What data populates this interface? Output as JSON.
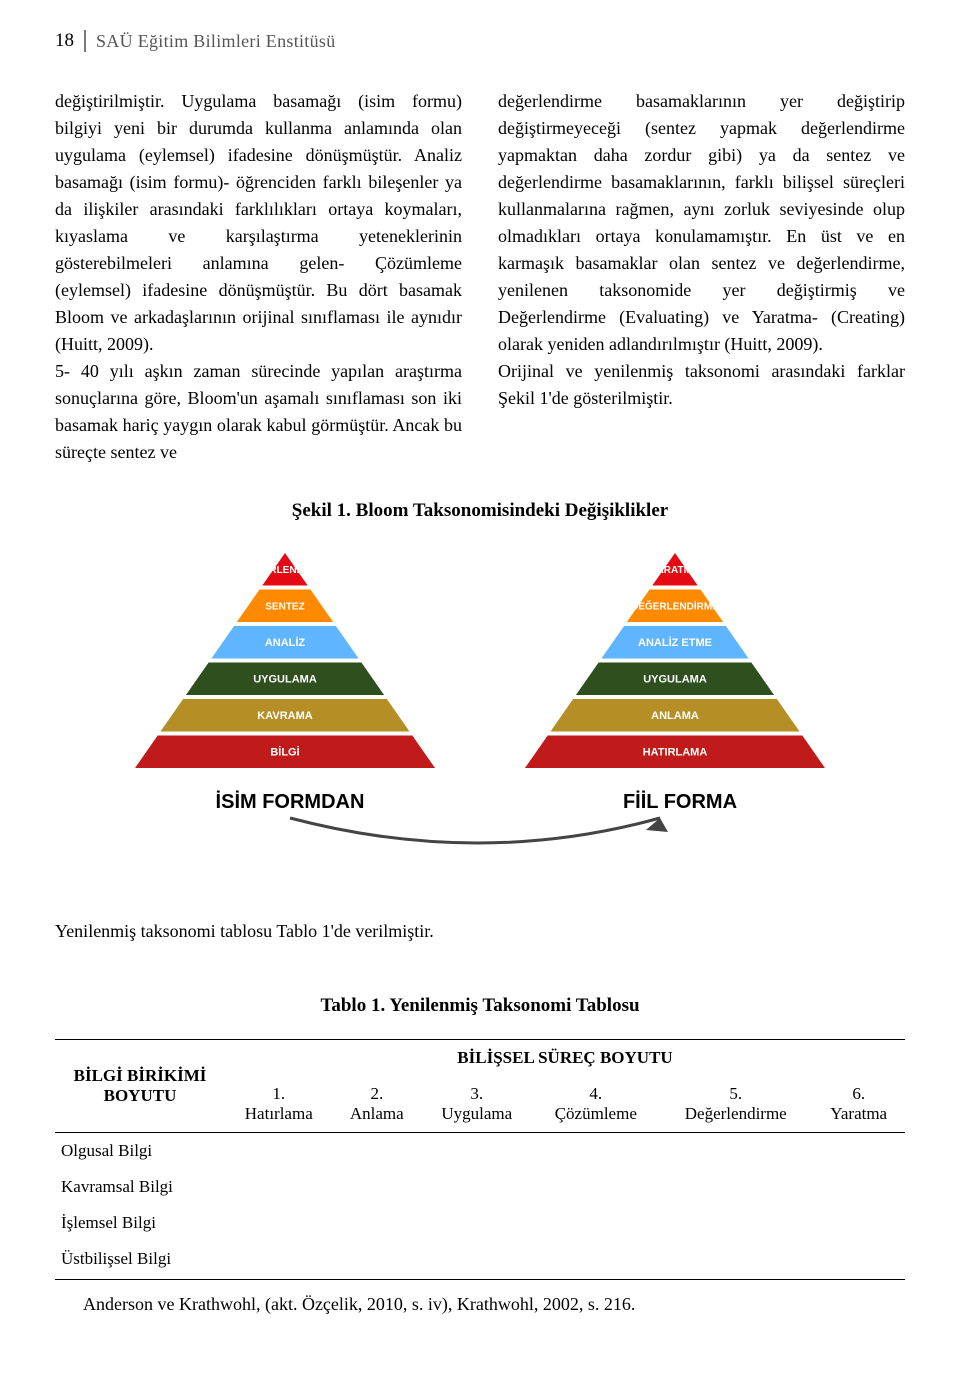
{
  "header": {
    "page_number": "18",
    "institute": "SAÜ Eğitim Bilimleri Enstitüsü"
  },
  "body": {
    "left": "değiştirilmiştir. Uygulama basamağı (isim formu) bilgiyi yeni bir durumda kullanma anlamında olan uygulama (eylemsel) ifadesine dönüşmüştür. Analiz basamağı (isim formu)- öğrenciden farklı bileşenler ya da ilişkiler arasındaki farklılıkları ortaya koymaları, kıyaslama ve karşılaştırma yeteneklerinin gösterebilmeleri anlamına gelen- Çözümleme (eylemsel) ifadesine dönüşmüştür. Bu dört basamak Bloom ve arkadaşlarının orijinal sınıflaması ile aynıdır (Huitt, 2009).\n5- 40 yılı aşkın zaman sürecinde yapılan araştırma sonuçlarına göre, Bloom'un aşamalı sınıflaması son iki basamak hariç yaygın olarak kabul görmüştür. Ancak bu süreçte sentez ve",
    "right": "değerlendirme basamaklarının yer değiştirip değiştirmeyeceği (sentez yapmak değerlendirme yapmaktan daha zordur gibi) ya da sentez ve değerlendirme basamaklarının, farklı bilişsel süreçleri kullanmalarına rağmen, aynı zorluk seviyesinde olup olmadıkları ortaya konulamamıştır. En üst ve en karmaşık basamaklar olan sentez ve değerlendirme, yenilenen taksonomide yer değiştirmiş ve Değerlendirme (Evaluating) ve Yaratma- (Creating) olarak yeniden adlandırılmıştır (Huitt, 2009).\nOrijinal ve yenilenmiş taksonomi arasındaki farklar Şekil 1'de gösterilmiştir."
  },
  "figure": {
    "title": "Şekil 1. Bloom Taksonomisindeki Değişiklikler",
    "left_form": "İSİM FORMDAN",
    "right_form": "FİİL FORMA",
    "arrow_color": "#444444",
    "left_pyramid": {
      "levels": [
        {
          "label": "DEĞERLENDİRME",
          "color": "#e50914"
        },
        {
          "label": "SENTEZ",
          "color": "#ff8a00"
        },
        {
          "label": "ANALİZ",
          "color": "#5fb5ff"
        },
        {
          "label": "UYGULAMA",
          "color": "#2f4f1f"
        },
        {
          "label": "KAVRAMA",
          "color": "#b58f26"
        },
        {
          "label": "BİLGİ",
          "color": "#c01a1a"
        }
      ]
    },
    "right_pyramid": {
      "levels": [
        {
          "label": "YARATMA",
          "color": "#e50914"
        },
        {
          "label": "DEĞERLENDİRME",
          "color": "#ff8a00"
        },
        {
          "label": "ANALİZ ETME",
          "color": "#5fb5ff"
        },
        {
          "label": "UYGULAMA",
          "color": "#2f4f1f"
        },
        {
          "label": "ANLAMA",
          "color": "#b58f26"
        },
        {
          "label": "HATIRLAMA",
          "color": "#c01a1a"
        }
      ]
    }
  },
  "section_para": "Yenilenmiş taksonomi tablosu Tablo 1'de verilmiştir.",
  "table": {
    "title": "Tablo 1. Yenilenmiş Taksonomi Tablosu",
    "left_head_1": "BİLGİ BİRİKİMİ",
    "left_head_2": "BOYUTU",
    "super_head": "BİLİŞSEL SÜREÇ BOYUTU",
    "cols": [
      {
        "n": "1.",
        "label": "Hatırlama"
      },
      {
        "n": "2.",
        "label": "Anlama"
      },
      {
        "n": "3.",
        "label": "Uygulama"
      },
      {
        "n": "4.",
        "label": "Çözümleme"
      },
      {
        "n": "5.",
        "label": "Değerlendirme"
      },
      {
        "n": "6.",
        "label": "Yaratma"
      }
    ],
    "rows": [
      "Olgusal Bilgi",
      "Kavramsal Bilgi",
      "İşlemsel Bilgi",
      "Üstbilişsel Bilgi"
    ]
  },
  "citation": "Anderson ve Krathwohl, (akt. Özçelik, 2010, s. iv), Krathwohl, 2002, s. 216."
}
